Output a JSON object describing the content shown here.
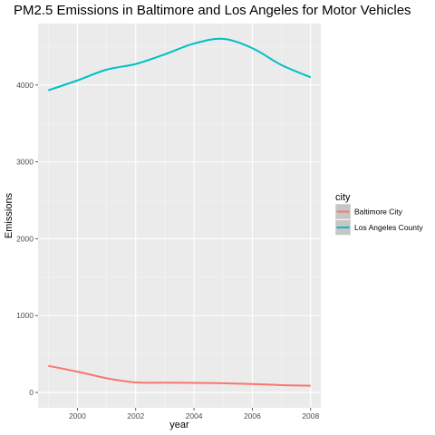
{
  "chart_data": {
    "type": "line",
    "title": "PM2.5 Emissions in Baltimore and Los Angeles for Motor Vehicles",
    "xlabel": "year",
    "ylabel": "Emissions",
    "xlim": [
      1998.65,
      2008.35
    ],
    "ylim": [
      -200,
      4800
    ],
    "xticks": [
      2000,
      2002,
      2004,
      2006,
      2008
    ],
    "yticks": [
      0,
      1000,
      2000,
      3000,
      4000
    ],
    "grid": true,
    "legend": {
      "title": "city",
      "position": "right"
    },
    "series": [
      {
        "name": "Baltimore City",
        "color": "#F8766D",
        "x": [
          1999,
          2000,
          2001,
          2002,
          2003,
          2004,
          2005,
          2006,
          2007,
          2008
        ],
        "values": [
          346,
          270,
          185,
          130,
          127,
          124,
          120,
          110,
          95,
          88
        ]
      },
      {
        "name": "Los Angeles County",
        "color": "#00BFC4",
        "x": [
          1999,
          2000,
          2001,
          2002,
          2003,
          2004,
          2005,
          2006,
          2007,
          2008
        ],
        "values": [
          3931,
          4060,
          4200,
          4274,
          4400,
          4540,
          4601,
          4480,
          4260,
          4101
        ]
      }
    ]
  }
}
